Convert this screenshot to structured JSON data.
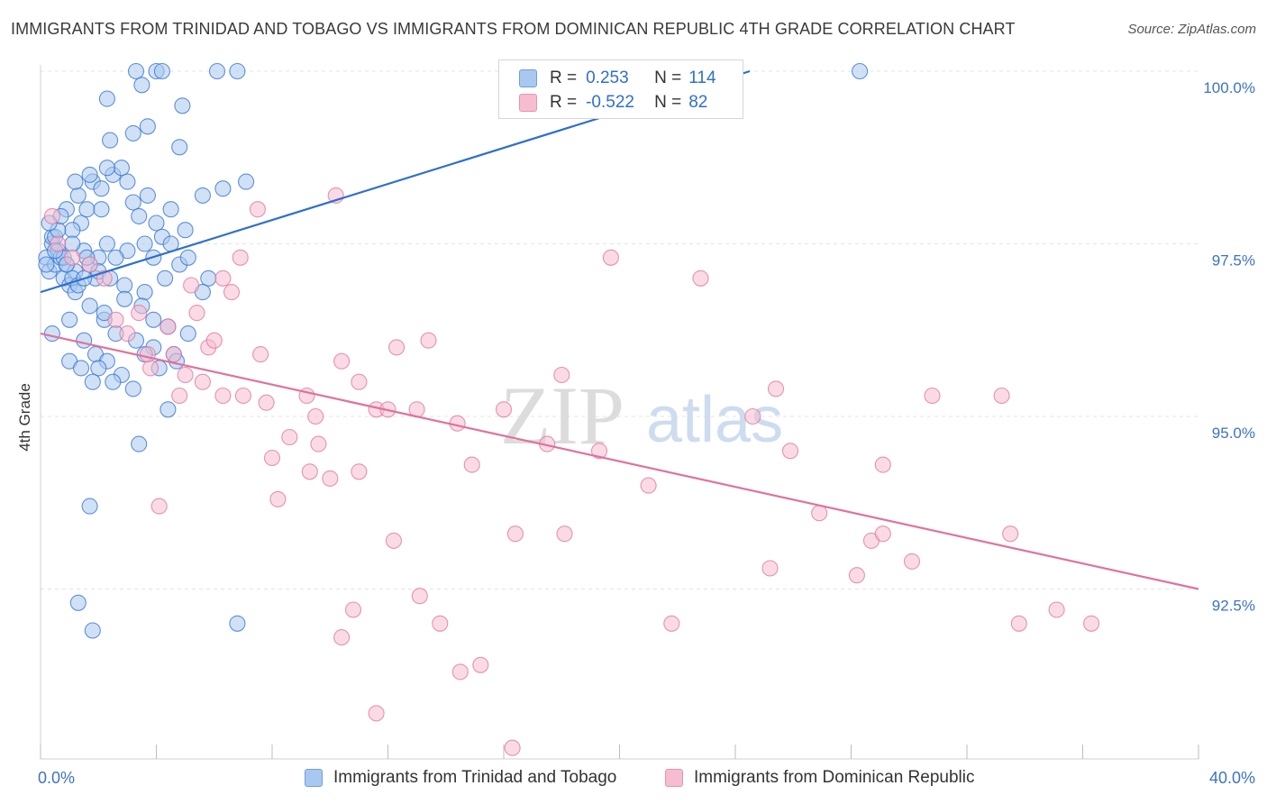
{
  "title": "IMMIGRANTS FROM TRINIDAD AND TOBAGO VS IMMIGRANTS FROM DOMINICAN REPUBLIC 4TH GRADE CORRELATION CHART",
  "source": "Source: ZipAtlas.com",
  "watermark": {
    "zip": "ZIP",
    "atlas": "atlas"
  },
  "colors": {
    "blue": "#2f6fcf",
    "blue_fill": "#a9c8ef",
    "pink": "#e0729c",
    "pink_fill": "#f6bdd0",
    "grid": "#e4e4e4",
    "axis_text": "#3d72c9"
  },
  "legend": {
    "series": [
      {
        "r_label": "R =",
        "r_value": "0.253",
        "n_label": "N =",
        "n_value": "114"
      },
      {
        "r_label": "R =",
        "r_value": "-0.522",
        "n_label": "N =",
        "n_value": "82"
      }
    ]
  },
  "bottom_legend": [
    "Immigrants from Trinidad and Tobago",
    "Immigrants from Dominican Republic"
  ],
  "chart_data": {
    "type": "scatter",
    "title": "IMMIGRANTS FROM TRINIDAD AND TOBAGO VS IMMIGRANTS FROM DOMINICAN REPUBLIC 4TH GRADE CORRELATION CHART",
    "xlabel": "",
    "ylabel": "4th Grade",
    "xlim": [
      0,
      40
    ],
    "ylim": [
      90.0,
      100.2
    ],
    "x_tick_labels": [
      {
        "value": 0,
        "label": "0.0%"
      },
      {
        "value": 40,
        "label": "40.0%"
      }
    ],
    "y_tick_labels": [
      {
        "value": 100.0,
        "label": "100.0%"
      },
      {
        "value": 97.5,
        "label": "97.5%"
      },
      {
        "value": 95.0,
        "label": "95.0%"
      },
      {
        "value": 92.5,
        "label": "92.5%"
      }
    ],
    "x_minor_ticks": [
      4,
      8,
      12,
      16,
      20,
      24,
      28,
      32,
      36
    ],
    "series": [
      {
        "name": "Immigrants from Trinidad and Tobago",
        "color": "#2f6fcf",
        "trend": {
          "x": [
            0,
            24.5
          ],
          "y": [
            96.8,
            100.0
          ]
        },
        "points": [
          [
            0.2,
            97.3
          ],
          [
            0.3,
            97.1
          ],
          [
            0.4,
            97.5
          ],
          [
            0.5,
            97.2
          ],
          [
            0.6,
            97.4
          ],
          [
            0.8,
            97.0
          ],
          [
            0.9,
            97.2
          ],
          [
            1.0,
            96.9
          ],
          [
            0.4,
            97.6
          ],
          [
            0.7,
            97.3
          ],
          [
            1.2,
            97.1
          ],
          [
            1.1,
            97.0
          ],
          [
            1.5,
            97.4
          ],
          [
            1.7,
            97.2
          ],
          [
            1.9,
            97.0
          ],
          [
            2.0,
            97.3
          ],
          [
            2.3,
            97.5
          ],
          [
            1.4,
            97.8
          ],
          [
            1.1,
            97.7
          ],
          [
            0.9,
            98.0
          ],
          [
            1.3,
            98.2
          ],
          [
            1.6,
            98.0
          ],
          [
            2.1,
            98.0
          ],
          [
            1.8,
            98.4
          ],
          [
            2.5,
            98.5
          ],
          [
            2.8,
            98.6
          ],
          [
            3.0,
            98.4
          ],
          [
            3.2,
            98.1
          ],
          [
            3.4,
            97.9
          ],
          [
            3.7,
            98.2
          ],
          [
            4.0,
            97.8
          ],
          [
            4.2,
            97.6
          ],
          [
            4.5,
            98.0
          ],
          [
            5.0,
            97.7
          ],
          [
            5.6,
            98.2
          ],
          [
            6.3,
            98.3
          ],
          [
            7.1,
            98.4
          ],
          [
            3.0,
            97.4
          ],
          [
            2.6,
            97.3
          ],
          [
            3.6,
            97.5
          ],
          [
            4.8,
            97.2
          ],
          [
            4.3,
            97.0
          ],
          [
            5.8,
            97.0
          ],
          [
            1.2,
            96.8
          ],
          [
            1.7,
            96.6
          ],
          [
            2.2,
            96.4
          ],
          [
            2.6,
            96.2
          ],
          [
            3.3,
            96.1
          ],
          [
            3.9,
            96.0
          ],
          [
            4.4,
            96.3
          ],
          [
            5.1,
            96.2
          ],
          [
            1.5,
            96.1
          ],
          [
            1.9,
            95.9
          ],
          [
            2.3,
            95.8
          ],
          [
            2.8,
            95.6
          ],
          [
            3.2,
            95.4
          ],
          [
            3.6,
            95.9
          ],
          [
            4.1,
            95.7
          ],
          [
            4.6,
            95.9
          ],
          [
            1.0,
            95.8
          ],
          [
            1.4,
            95.7
          ],
          [
            2.0,
            95.7
          ],
          [
            4.4,
            95.1
          ],
          [
            3.4,
            94.6
          ],
          [
            1.7,
            93.7
          ],
          [
            1.3,
            92.3
          ],
          [
            1.8,
            91.9
          ],
          [
            6.8,
            92.0
          ],
          [
            3.3,
            100.0
          ],
          [
            4.0,
            100.0
          ],
          [
            4.2,
            100.0
          ],
          [
            6.1,
            100.0
          ],
          [
            6.8,
            100.0
          ],
          [
            28.3,
            100.0
          ],
          [
            2.3,
            99.6
          ],
          [
            3.5,
            99.8
          ],
          [
            4.9,
            99.5
          ],
          [
            3.7,
            99.2
          ],
          [
            3.2,
            99.1
          ],
          [
            2.4,
            99.0
          ],
          [
            4.8,
            98.9
          ],
          [
            2.3,
            98.6
          ],
          [
            1.7,
            98.5
          ],
          [
            1.2,
            98.4
          ],
          [
            2.1,
            98.3
          ],
          [
            0.5,
            97.6
          ],
          [
            0.8,
            97.3
          ],
          [
            1.3,
            96.9
          ],
          [
            1.0,
            96.4
          ],
          [
            0.6,
            97.7
          ],
          [
            0.7,
            97.9
          ],
          [
            1.6,
            97.3
          ],
          [
            2.0,
            97.1
          ],
          [
            2.4,
            97.0
          ],
          [
            2.9,
            96.9
          ],
          [
            3.6,
            96.8
          ],
          [
            3.9,
            97.3
          ],
          [
            4.5,
            97.5
          ],
          [
            5.1,
            97.3
          ],
          [
            5.6,
            96.8
          ],
          [
            0.3,
            97.8
          ],
          [
            0.5,
            97.4
          ],
          [
            0.9,
            97.2
          ],
          [
            1.1,
            97.5
          ],
          [
            1.5,
            97.0
          ],
          [
            2.2,
            96.5
          ],
          [
            2.9,
            96.7
          ],
          [
            3.5,
            96.6
          ],
          [
            0.4,
            96.2
          ],
          [
            1.8,
            95.5
          ],
          [
            2.5,
            95.5
          ],
          [
            3.9,
            96.4
          ],
          [
            4.7,
            95.8
          ],
          [
            0.2,
            97.2
          ]
        ]
      },
      {
        "name": "Immigrants from Dominican Republic",
        "color": "#e0729c",
        "trend": {
          "x": [
            0,
            40
          ],
          "y": [
            96.2,
            92.5
          ]
        },
        "points": [
          [
            0.4,
            97.9
          ],
          [
            0.6,
            97.5
          ],
          [
            1.1,
            97.3
          ],
          [
            1.7,
            97.2
          ],
          [
            2.2,
            97.0
          ],
          [
            2.6,
            96.4
          ],
          [
            3.0,
            96.2
          ],
          [
            3.4,
            96.5
          ],
          [
            3.8,
            95.7
          ],
          [
            4.4,
            96.3
          ],
          [
            5.0,
            95.6
          ],
          [
            5.4,
            96.5
          ],
          [
            5.8,
            96.0
          ],
          [
            6.0,
            96.1
          ],
          [
            6.6,
            96.8
          ],
          [
            6.9,
            97.3
          ],
          [
            7.5,
            98.0
          ],
          [
            10.2,
            98.2
          ],
          [
            4.6,
            95.9
          ],
          [
            5.2,
            96.9
          ],
          [
            6.3,
            97.0
          ],
          [
            7.0,
            95.3
          ],
          [
            7.6,
            95.9
          ],
          [
            8.0,
            94.4
          ],
          [
            8.6,
            94.7
          ],
          [
            9.2,
            95.3
          ],
          [
            9.6,
            94.6
          ],
          [
            10.4,
            95.8
          ],
          [
            11.0,
            95.5
          ],
          [
            11.6,
            95.1
          ],
          [
            12.3,
            96.0
          ],
          [
            13.0,
            95.1
          ],
          [
            13.4,
            96.1
          ],
          [
            14.4,
            94.9
          ],
          [
            14.9,
            94.3
          ],
          [
            16.0,
            95.1
          ],
          [
            18.0,
            95.6
          ],
          [
            17.5,
            94.6
          ],
          [
            19.3,
            94.5
          ],
          [
            19.7,
            97.3
          ],
          [
            21.0,
            94.0
          ],
          [
            21.8,
            92.0
          ],
          [
            22.8,
            97.0
          ],
          [
            24.6,
            95.0
          ],
          [
            25.4,
            95.4
          ],
          [
            25.9,
            94.5
          ],
          [
            26.9,
            93.6
          ],
          [
            25.2,
            92.8
          ],
          [
            28.2,
            92.7
          ],
          [
            28.7,
            93.2
          ],
          [
            29.1,
            93.3
          ],
          [
            30.1,
            92.9
          ],
          [
            30.8,
            95.3
          ],
          [
            29.1,
            94.3
          ],
          [
            33.2,
            95.3
          ],
          [
            33.5,
            93.3
          ],
          [
            33.8,
            92.0
          ],
          [
            35.1,
            92.2
          ],
          [
            36.3,
            92.0
          ],
          [
            4.1,
            93.7
          ],
          [
            8.2,
            93.8
          ],
          [
            9.3,
            94.2
          ],
          [
            10.0,
            94.1
          ],
          [
            11.0,
            94.2
          ],
          [
            12.2,
            93.2
          ],
          [
            13.1,
            92.4
          ],
          [
            13.8,
            92.0
          ],
          [
            10.8,
            92.2
          ],
          [
            10.4,
            91.8
          ],
          [
            14.5,
            91.3
          ],
          [
            15.2,
            91.4
          ],
          [
            11.6,
            90.7
          ],
          [
            16.3,
            90.2
          ],
          [
            16.4,
            93.3
          ],
          [
            18.1,
            93.3
          ],
          [
            4.8,
            95.3
          ],
          [
            5.6,
            95.5
          ],
          [
            6.3,
            95.3
          ],
          [
            7.8,
            95.2
          ],
          [
            9.5,
            95.0
          ],
          [
            12.0,
            95.1
          ],
          [
            3.7,
            95.9
          ]
        ]
      }
    ]
  }
}
